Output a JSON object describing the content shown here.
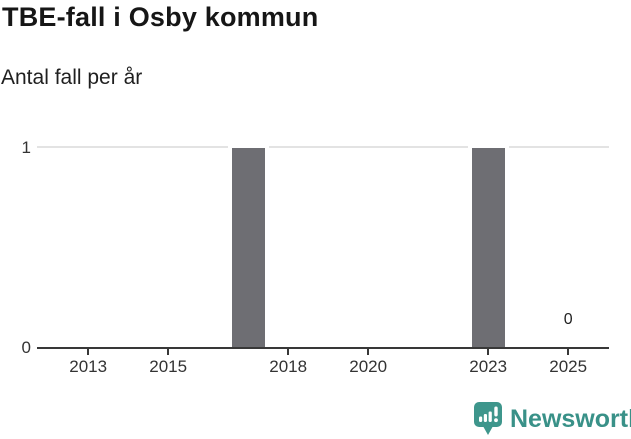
{
  "header": {
    "title": "TBE-fall i Osby kommun",
    "subtitle": "Antal fall per år"
  },
  "chart_data": {
    "type": "bar",
    "title": "TBE-fall i Osby kommun",
    "subtitle": "Antal fall per år",
    "xlabel": "",
    "ylabel": "Antal fall per år",
    "xlim": [
      2011.72,
      2026.02
    ],
    "ylim": [
      0,
      1
    ],
    "x_ticks": [
      "2013",
      "2015",
      "2018",
      "2020",
      "2023",
      "2025"
    ],
    "x_tick_years": [
      2013,
      2015,
      2018,
      2020,
      2023,
      2025
    ],
    "y_ticks": [
      "0",
      "1"
    ],
    "y_tick_values": [
      0,
      1
    ],
    "bars": [
      {
        "year": 2017,
        "value": 1
      },
      {
        "year": 2023,
        "value": 1
      }
    ],
    "value_labels": [
      {
        "year": 2025,
        "value": 0,
        "text": "0"
      }
    ],
    "grid": "horizontal gridline at y=1 only",
    "legend": "none",
    "colors": {
      "bar": "#6e6e73",
      "axis": "#383838",
      "gridline": "#e3e3e3",
      "tick_text": "#333333"
    }
  },
  "footer": {
    "brand": "Newsworthy",
    "brand_color": "#399188",
    "icon_color": "#3e968c",
    "logo_icon": "speech-bubble-with-bar-chart-and-exclamation"
  }
}
